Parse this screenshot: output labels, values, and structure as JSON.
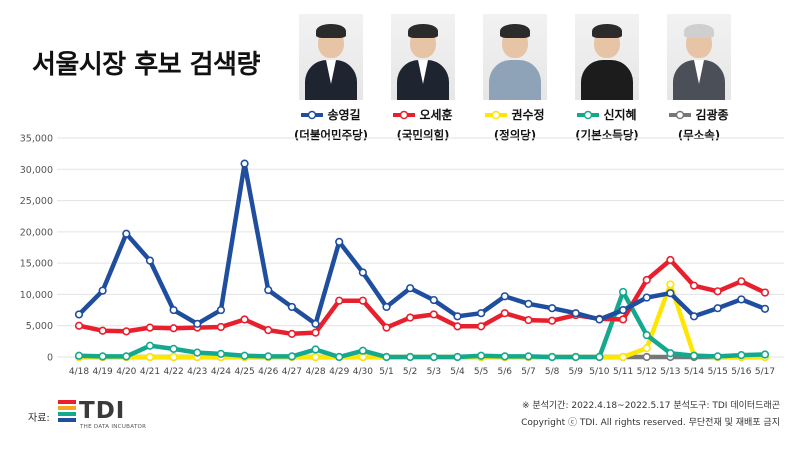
{
  "title": "서울시장 후보 검색량",
  "candidates": [
    {
      "name": "송영길",
      "party": "(더불어민주당)",
      "color": "#1f4e9e",
      "photo_icon": "candidate-portrait"
    },
    {
      "name": "오세훈",
      "party": "(국민의힘)",
      "color": "#e8202e",
      "photo_icon": "candidate-portrait"
    },
    {
      "name": "권수정",
      "party": "(정의당)",
      "color": "#ffe600",
      "photo_icon": "candidate-portrait"
    },
    {
      "name": "신지혜",
      "party": "(기본소득당)",
      "color": "#14a98f",
      "photo_icon": "candidate-portrait"
    },
    {
      "name": "김광종",
      "party": "(무소속)",
      "color": "#777777",
      "photo_icon": "candidate-portrait"
    }
  ],
  "footer": {
    "source_label": "자료:",
    "logo_text": "TDI",
    "logo_sub": "THE DATA INCUBATOR",
    "note": "※ 분석기간: 2022.4.18~2022.5.17   분석도구: TDI 데이터드래곤",
    "copyright": "Copyright ⓒ TDI. All rights reserved. 무단전재 및 재배포 금지"
  },
  "chart_data": {
    "type": "line",
    "ylim": [
      0,
      35000
    ],
    "yticks": [
      0,
      5000,
      10000,
      15000,
      20000,
      25000,
      30000,
      35000
    ],
    "ytick_labels": [
      "0",
      "5,000",
      "10,000",
      "15,000",
      "20,000",
      "25,000",
      "30,000",
      "35,000"
    ],
    "categories": [
      "4/18",
      "4/19",
      "4/20",
      "4/21",
      "4/22",
      "4/23",
      "4/24",
      "4/25",
      "4/26",
      "4/27",
      "4/28",
      "4/29",
      "4/30",
      "5/1",
      "5/2",
      "5/3",
      "5/4",
      "5/5",
      "5/6",
      "5/7",
      "5/8",
      "5/9",
      "5/10",
      "5/11",
      "5/12",
      "5/13",
      "5/14",
      "5/15",
      "5/16",
      "5/17"
    ],
    "grid": true,
    "legend": "top",
    "series": [
      {
        "name": "송영길",
        "color": "#1f4e9e",
        "values": [
          6800,
          10600,
          19700,
          15400,
          7500,
          5300,
          7500,
          30900,
          10700,
          8000,
          5300,
          18400,
          13500,
          8000,
          11000,
          9100,
          6500,
          7000,
          9700,
          8500,
          7800,
          7000,
          6000,
          7500,
          9500,
          10200,
          6500,
          7800,
          9200,
          7700
        ]
      },
      {
        "name": "오세훈",
        "color": "#e8202e",
        "values": [
          5000,
          4200,
          4100,
          4700,
          4600,
          4700,
          4800,
          6000,
          4300,
          3700,
          3900,
          9000,
          9000,
          4700,
          6300,
          6800,
          4900,
          4900,
          7000,
          5900,
          5800,
          6700,
          6100,
          6000,
          12300,
          15500,
          11400,
          10500,
          12100,
          10300
        ]
      },
      {
        "name": "권수정",
        "color": "#ffe600",
        "values": [
          0,
          0,
          0,
          0,
          0,
          0,
          0,
          0,
          0,
          0,
          0,
          0,
          0,
          0,
          0,
          0,
          0,
          0,
          0,
          0,
          0,
          0,
          0,
          0,
          1400,
          11600,
          300,
          0,
          0,
          0
        ]
      },
      {
        "name": "신지혜",
        "color": "#14a98f",
        "values": [
          200,
          100,
          100,
          1800,
          1300,
          700,
          500,
          200,
          100,
          100,
          1200,
          0,
          1000,
          0,
          0,
          0,
          0,
          200,
          100,
          100,
          0,
          0,
          0,
          10400,
          3500,
          600,
          200,
          100,
          300,
          400
        ]
      },
      {
        "name": "김광종",
        "color": "#777777",
        "values": [
          0,
          0,
          0,
          0,
          0,
          0,
          0,
          0,
          0,
          0,
          0,
          0,
          0,
          0,
          0,
          0,
          0,
          0,
          0,
          0,
          0,
          0,
          0,
          0,
          0,
          0,
          0,
          0,
          0,
          0
        ]
      }
    ]
  }
}
